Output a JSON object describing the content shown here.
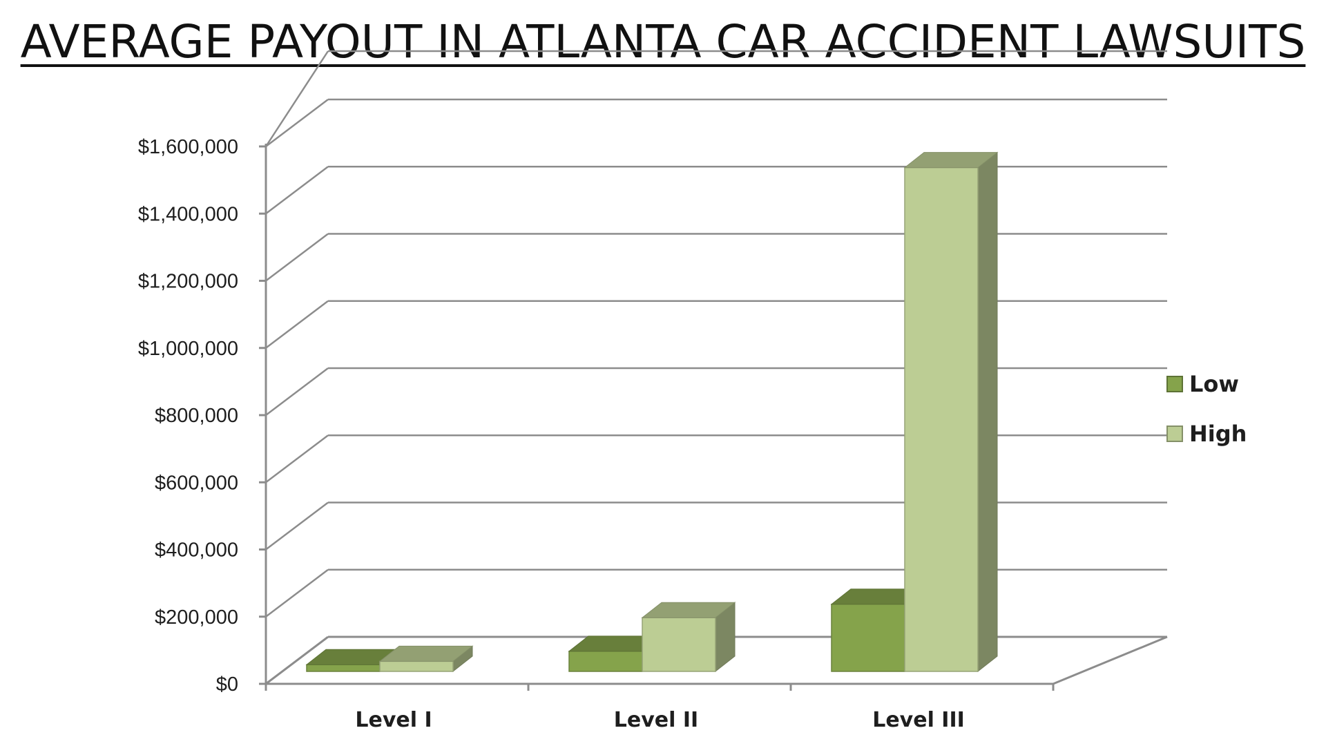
{
  "chart_data": {
    "type": "bar",
    "title": "AVERAGE PAYOUT IN ATLANTA CAR ACCIDENT LAWSUITS",
    "xlabel": "",
    "ylabel": "",
    "categories": [
      "Level I",
      "Level II",
      "Level III"
    ],
    "series": [
      {
        "name": "Low",
        "values": [
          20000,
          60000,
          200000
        ],
        "color": "#85a34b"
      },
      {
        "name": "High",
        "values": [
          30000,
          160000,
          1500000
        ],
        "color": "#bccd94"
      }
    ],
    "ylim": [
      0,
      1600000
    ],
    "yticks": [
      0,
      200000,
      400000,
      600000,
      800000,
      1000000,
      1200000,
      1400000,
      1600000
    ],
    "ytick_labels": [
      "$0",
      "$200,000",
      "$400,000",
      "$600,000",
      "$800,000",
      "$1,000,000",
      "$1,200,000",
      "$1,400,000",
      "$1,600,000"
    ],
    "grid": true,
    "legend_position": "right",
    "style": "3d-column"
  }
}
